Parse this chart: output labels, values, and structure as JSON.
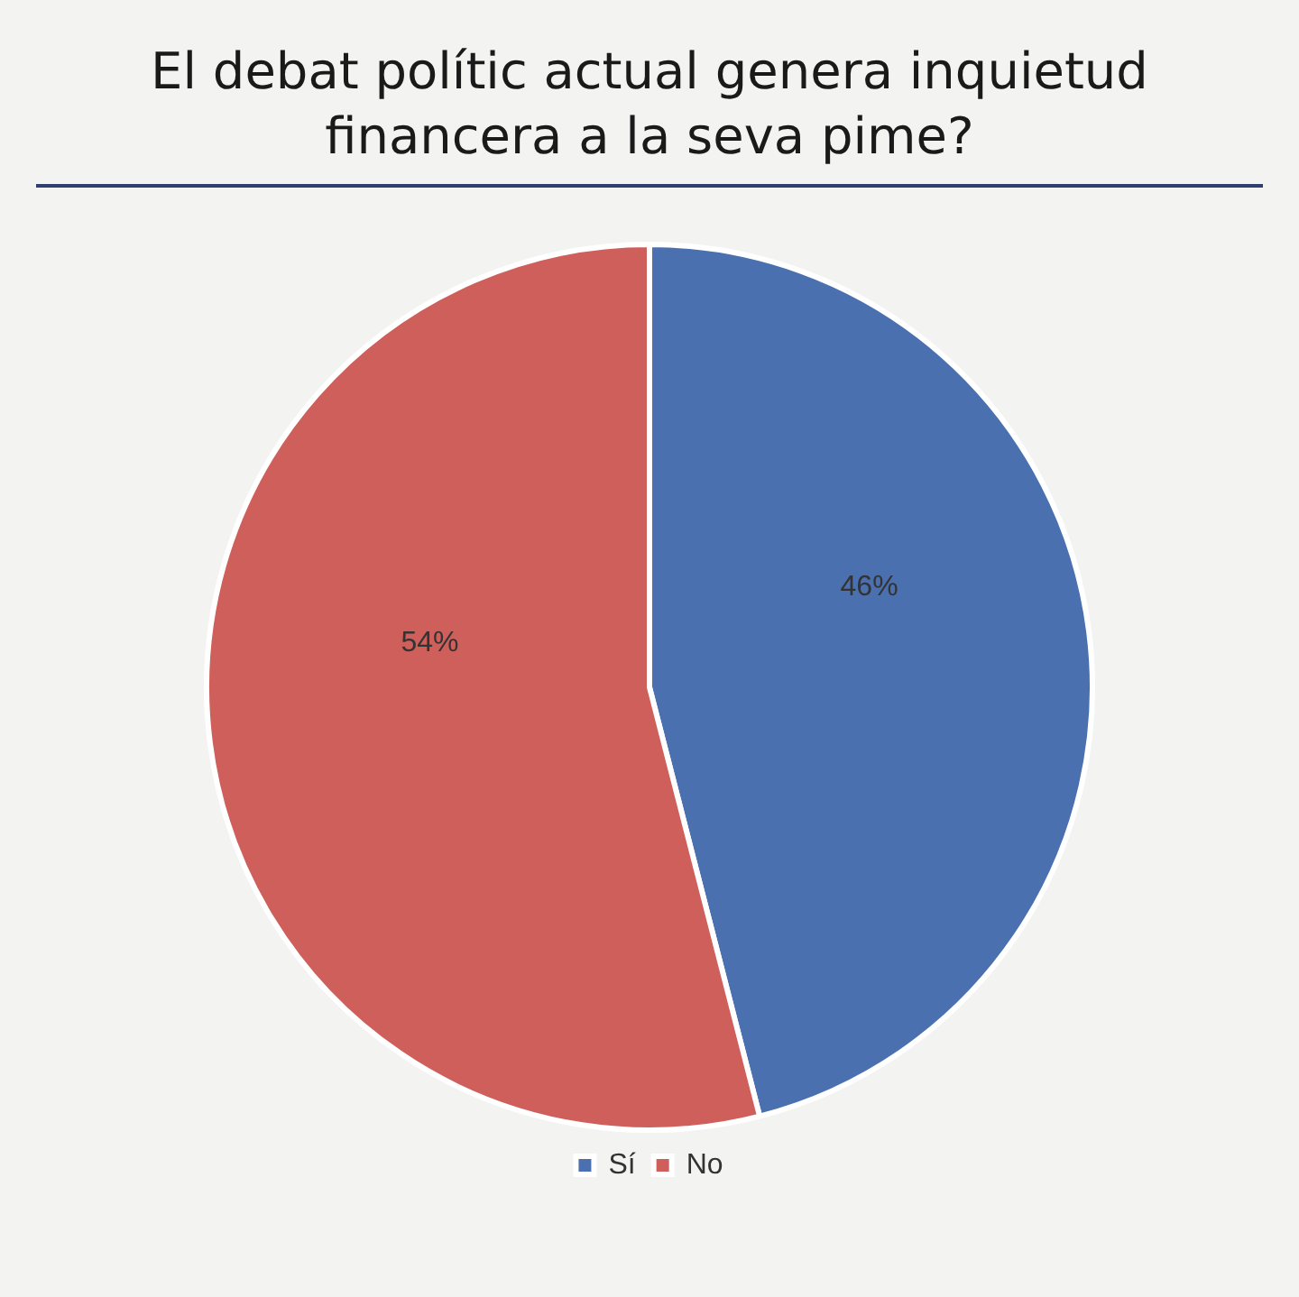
{
  "chart_data": {
    "type": "pie",
    "title": "El debat polític actual genera inquietud financera a la seva pime?",
    "categories": [
      "Sí",
      "No"
    ],
    "values": [
      46,
      54
    ],
    "colors": [
      "#4a70b0",
      "#cf5f5a"
    ],
    "value_labels": [
      "46%",
      "54%"
    ],
    "legend": "bottom"
  }
}
